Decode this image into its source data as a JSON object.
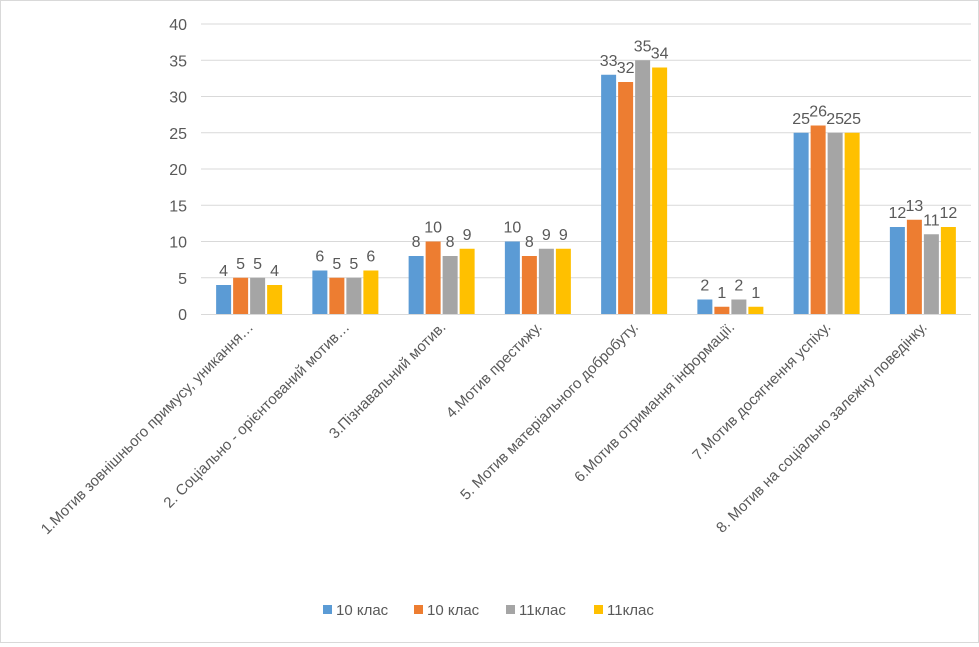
{
  "chart_data": {
    "type": "bar",
    "title": "",
    "xlabel": "",
    "ylabel": "",
    "ylim": [
      0,
      40
    ],
    "ytick_step": 5,
    "grid": true,
    "legend_position": "bottom",
    "categories": [
      "1.Мотив зовнішнього  примусу, уникання…",
      "2. Соціально - орієнтований мотив…",
      "3.Пізнавальний мотив.",
      "4.Мотив престижу.",
      "5. Мотив матеріального добробуту.",
      "6.Мотив отримання інформації.",
      "7.Мотив досягнення успіху.",
      "8. Мотив на соціально залежну поведінку."
    ],
    "series": [
      {
        "name": "10 клас",
        "color": "#5b9bd5",
        "values": [
          4,
          6,
          8,
          10,
          33,
          2,
          25,
          12
        ]
      },
      {
        "name": "10 клас",
        "color": "#ed7d31",
        "values": [
          5,
          5,
          10,
          8,
          32,
          1,
          26,
          13
        ]
      },
      {
        "name": "11клас",
        "color": "#a5a5a5",
        "values": [
          5,
          5,
          8,
          9,
          35,
          2,
          25,
          11
        ]
      },
      {
        "name": "11клас",
        "color": "#ffc000",
        "values": [
          4,
          6,
          9,
          9,
          34,
          1,
          25,
          12
        ]
      }
    ]
  }
}
